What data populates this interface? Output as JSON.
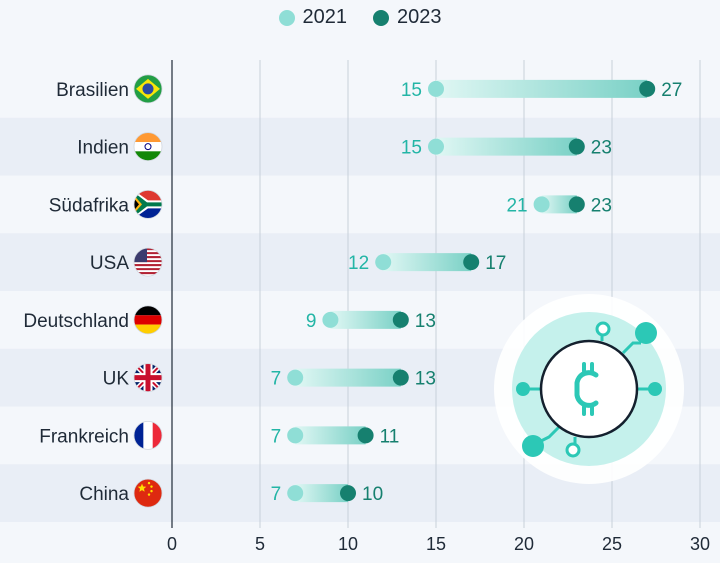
{
  "chart_data": {
    "type": "dumbbell",
    "title": "",
    "xlabel": "",
    "ylabel": "",
    "xlim": [
      0,
      30
    ],
    "xticks": [
      0,
      5,
      10,
      15,
      20,
      25,
      30
    ],
    "categories": [
      "Brasilien",
      "Indien",
      "Südafrika",
      "USA",
      "Deutschland",
      "UK",
      "Frankreich",
      "China"
    ],
    "series": [
      {
        "name": "2021",
        "color": "#8fded6",
        "label_color": "#23b5a6",
        "values": [
          15,
          15,
          21,
          12,
          9,
          7,
          7,
          7
        ]
      },
      {
        "name": "2023",
        "color": "#16806f",
        "label_color": "#16806f",
        "values": [
          27,
          23,
          23,
          17,
          13,
          13,
          11,
          10
        ]
      }
    ],
    "flags": [
      "brazil",
      "india",
      "south-africa",
      "usa",
      "germany",
      "uk",
      "france",
      "china"
    ],
    "decoration": "bitcoin-circuit-icon"
  }
}
